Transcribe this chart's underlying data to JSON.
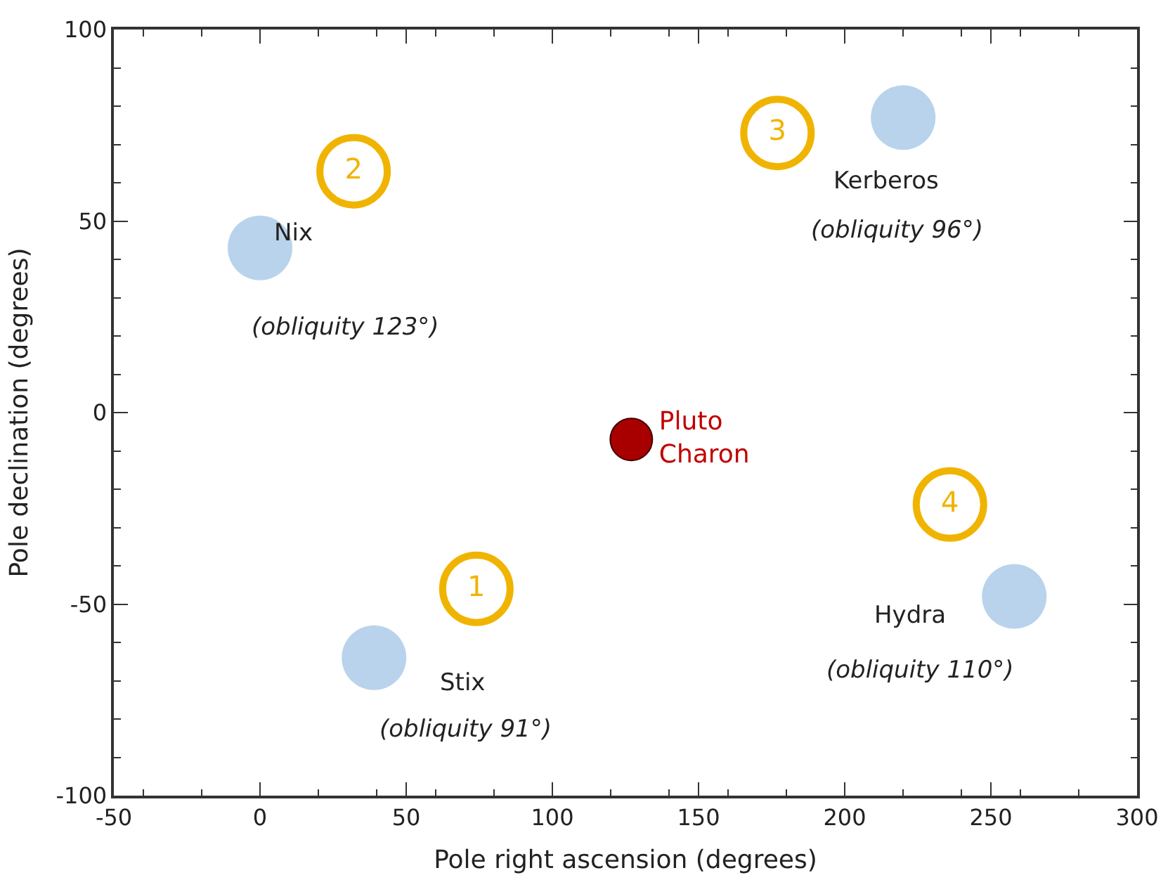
{
  "chart_data": {
    "type": "scatter",
    "xlabel": "Pole right ascension (degrees)",
    "ylabel": "Pole declination (degrees)",
    "xlim": [
      -50,
      300
    ],
    "xticks": [
      -50,
      0,
      50,
      100,
      150,
      200,
      250,
      300
    ],
    "ylim": [
      -100,
      100
    ],
    "yticks": [
      -100,
      -50,
      0,
      50,
      100
    ],
    "grid": false,
    "legend": false,
    "marker": "circle",
    "series": [
      {
        "color": "#b9d3ec",
        "x": [
          39,
          0,
          220,
          258
        ],
        "values": [
          -64,
          43,
          77,
          -48
        ]
      },
      {
        "name": "Pluto\nCharon",
        "color": "#a80000",
        "x": [
          127
        ],
        "values": [
          -7
        ]
      },
      {
        "name": "1",
        "color": "#f0b400",
        "x": [
          74
        ],
        "values": [
          -46
        ]
      },
      {
        "name": "2",
        "color": "#f0b400",
        "x": [
          32
        ],
        "values": [
          63
        ]
      },
      {
        "name": "3",
        "color": "#f0b400",
        "x": [
          177
        ],
        "values": [
          73
        ]
      },
      {
        "name": "4",
        "color": "#f0b400",
        "x": [
          236
        ],
        "values": [
          -24
        ]
      }
    ],
    "annotations": [
      "Stix",
      "(obliquity 91°)",
      "Nix",
      "(obliquity 123°)",
      "Kerberos",
      "(obliquity 96°)",
      "Hydra",
      "(obliquity 110°)"
    ]
  }
}
